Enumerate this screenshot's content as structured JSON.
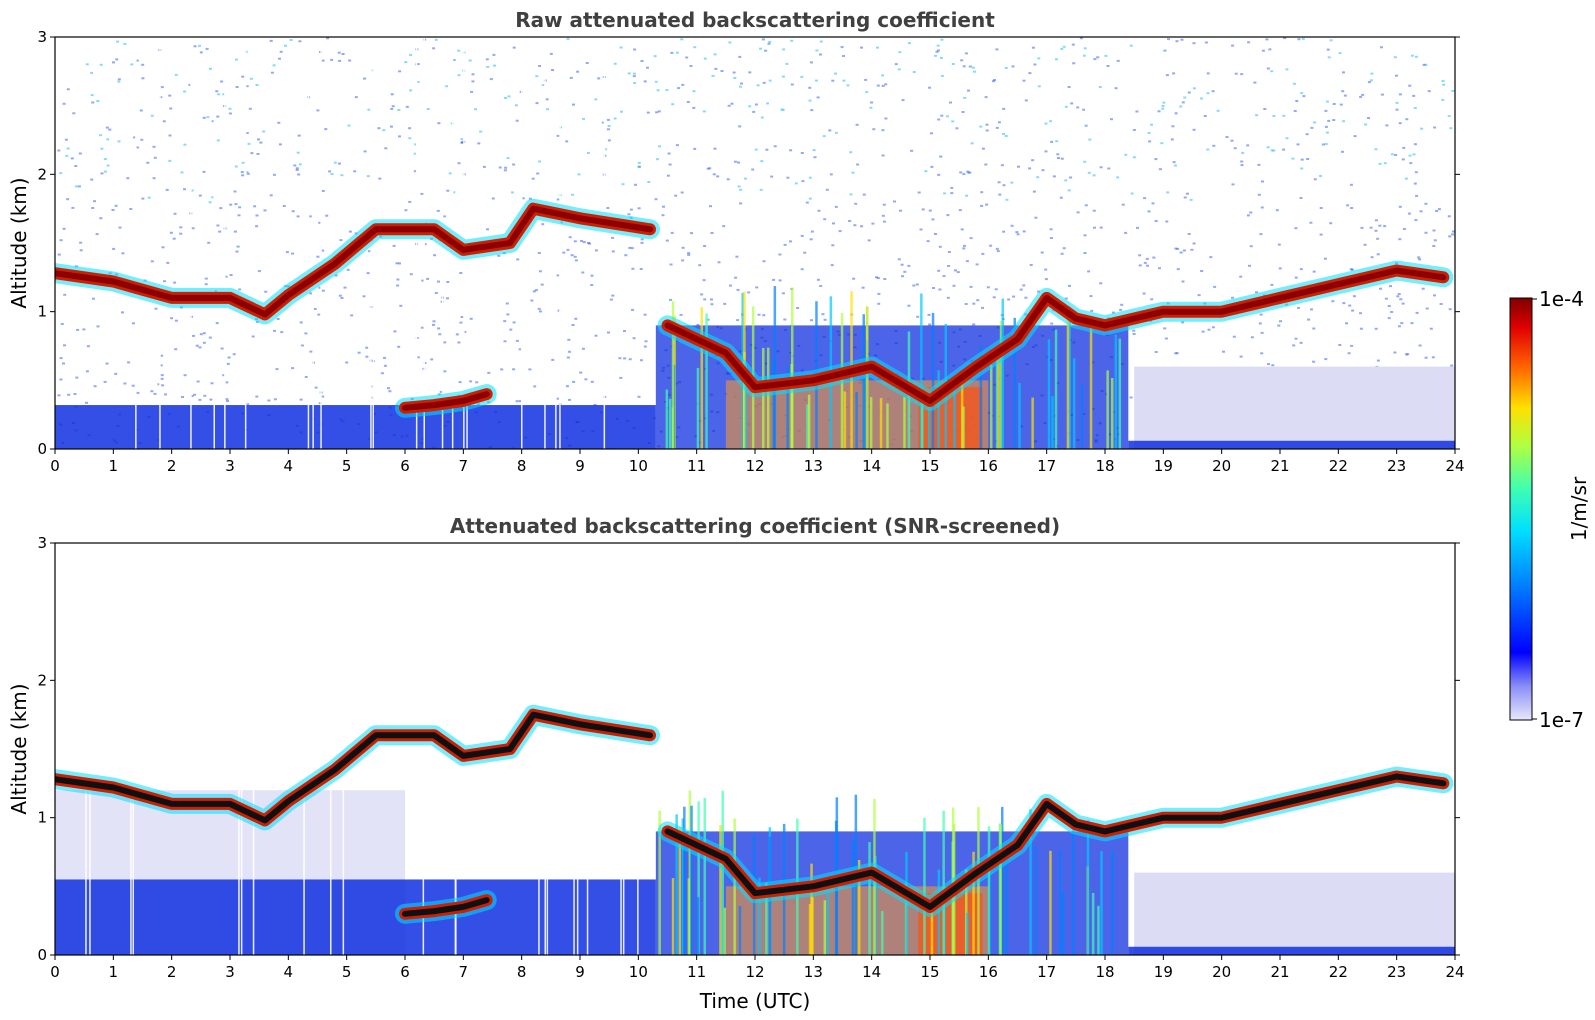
{
  "chart_data": [
    {
      "type": "heatmap",
      "panel": "top",
      "title": "Raw attenuated backscattering coefficient",
      "xlabel": "",
      "ylabel": "Altitude (km)",
      "xlim": [
        0,
        24
      ],
      "ylim": [
        0,
        3
      ],
      "xticks": [
        0,
        1,
        2,
        3,
        4,
        5,
        6,
        7,
        8,
        9,
        10,
        11,
        12,
        13,
        14,
        15,
        16,
        17,
        18,
        19,
        20,
        21,
        22,
        23,
        24
      ],
      "yticks": [
        0,
        1,
        2,
        3
      ],
      "layers": [
        {
          "name": "cloud-base",
          "points": [
            [
              0,
              1.28
            ],
            [
              1,
              1.22
            ],
            [
              2,
              1.1
            ],
            [
              3,
              1.1
            ],
            [
              3.6,
              0.98
            ],
            [
              4,
              1.12
            ],
            [
              4.8,
              1.35
            ],
            [
              5.5,
              1.6
            ],
            [
              6.5,
              1.6
            ],
            [
              7,
              1.45
            ],
            [
              7.8,
              1.5
            ],
            [
              8.2,
              1.75
            ],
            [
              9,
              1.68
            ],
            [
              10.2,
              1.6
            ]
          ]
        },
        {
          "name": "low-cloud-1",
          "points": [
            [
              10.5,
              0.9
            ],
            [
              11.5,
              0.7
            ],
            [
              12,
              0.45
            ],
            [
              13,
              0.5
            ],
            [
              14,
              0.6
            ],
            [
              15,
              0.35
            ],
            [
              15.8,
              0.6
            ],
            [
              16.5,
              0.8
            ],
            [
              17,
              1.1
            ],
            [
              17.5,
              0.95
            ],
            [
              18,
              0.9
            ],
            [
              18.5,
              0.95
            ],
            [
              19,
              1.0
            ],
            [
              20,
              1.0
            ],
            [
              21,
              1.1
            ],
            [
              22,
              1.2
            ],
            [
              23,
              1.3
            ],
            [
              23.8,
              1.25
            ]
          ]
        },
        {
          "name": "low-cloud-2",
          "points": [
            [
              6,
              0.3
            ],
            [
              6.5,
              0.32
            ],
            [
              7,
              0.35
            ],
            [
              7.4,
              0.4
            ]
          ]
        }
      ],
      "colorscale": {
        "min": "1e-7",
        "max": "1e-4",
        "unit": "1/m/sr"
      }
    },
    {
      "type": "heatmap",
      "panel": "bottom",
      "title": "Attenuated backscattering coefficient (SNR-screened)",
      "xlabel": "Time (UTC)",
      "ylabel": "Altitude (km)",
      "xlim": [
        0,
        24
      ],
      "ylim": [
        0,
        3
      ],
      "xticks": [
        0,
        1,
        2,
        3,
        4,
        5,
        6,
        7,
        8,
        9,
        10,
        11,
        12,
        13,
        14,
        15,
        16,
        17,
        18,
        19,
        20,
        21,
        22,
        23,
        24
      ],
      "yticks": [
        0,
        1,
        2,
        3
      ],
      "layers": [
        {
          "name": "cloud-base",
          "points": [
            [
              0,
              1.28
            ],
            [
              1,
              1.22
            ],
            [
              2,
              1.1
            ],
            [
              3,
              1.1
            ],
            [
              3.6,
              0.98
            ],
            [
              4,
              1.12
            ],
            [
              4.8,
              1.35
            ],
            [
              5.5,
              1.6
            ],
            [
              6.5,
              1.6
            ],
            [
              7,
              1.45
            ],
            [
              7.8,
              1.5
            ],
            [
              8.2,
              1.75
            ],
            [
              9,
              1.68
            ],
            [
              10.2,
              1.6
            ]
          ]
        },
        {
          "name": "low-cloud-1",
          "points": [
            [
              10.5,
              0.9
            ],
            [
              11.5,
              0.7
            ],
            [
              12,
              0.45
            ],
            [
              13,
              0.5
            ],
            [
              14,
              0.6
            ],
            [
              15,
              0.35
            ],
            [
              15.8,
              0.6
            ],
            [
              16.5,
              0.8
            ],
            [
              17,
              1.1
            ],
            [
              17.5,
              0.95
            ],
            [
              18,
              0.9
            ],
            [
              18.5,
              0.95
            ],
            [
              19,
              1.0
            ],
            [
              20,
              1.0
            ],
            [
              21,
              1.1
            ],
            [
              22,
              1.2
            ],
            [
              23,
              1.3
            ],
            [
              23.8,
              1.25
            ]
          ]
        },
        {
          "name": "low-cloud-2",
          "points": [
            [
              6,
              0.3
            ],
            [
              6.5,
              0.32
            ],
            [
              7,
              0.35
            ],
            [
              7.4,
              0.4
            ]
          ]
        }
      ],
      "colorscale": {
        "min": "1e-7",
        "max": "1e-4",
        "unit": "1/m/sr"
      }
    }
  ],
  "colorbar": {
    "top_label": "1e-4",
    "bottom_label": "1e-7",
    "unit_label": "1/m/sr"
  },
  "colors": {
    "noise_blue": "#3b63f0",
    "noise_cyan": "#22c0f0",
    "dense_blue": "#1030e0",
    "faint": "#dcdcf5",
    "cloud_red": "#cc2000",
    "cloud_core": "#8b0000",
    "cloud_black": "#101010"
  }
}
